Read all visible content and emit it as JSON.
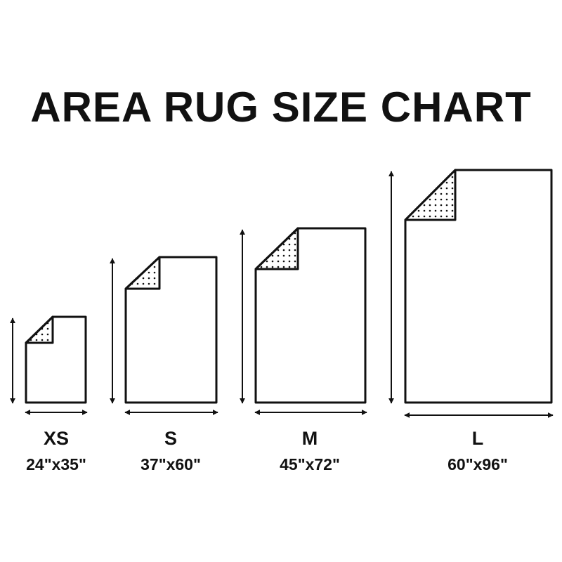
{
  "title": "AREA RUG SIZE CHART",
  "rugs": [
    {
      "size": "XS",
      "dimensions": "24\"x35\"",
      "width_in": 24,
      "length_in": 35
    },
    {
      "size": "S",
      "dimensions": "37\"x60\"",
      "width_in": 37,
      "length_in": 60
    },
    {
      "size": "M",
      "dimensions": "45\"x72\"",
      "width_in": 45,
      "length_in": 72
    },
    {
      "size": "L",
      "dimensions": "60\"x96\"",
      "width_in": 60,
      "length_in": 96
    }
  ],
  "colors": {
    "ink": "#111111",
    "background": "#ffffff"
  }
}
